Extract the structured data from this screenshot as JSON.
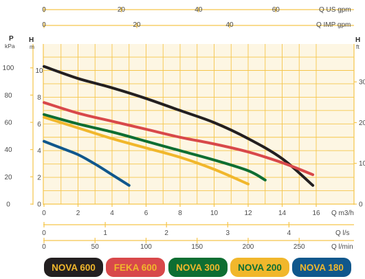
{
  "chart_data": {
    "type": "line",
    "axes": {
      "x_primary": {
        "label": "Q m3/h",
        "ticks": [
          "0",
          "2",
          "4",
          "6",
          "8",
          "10",
          "12",
          "14",
          "16"
        ],
        "range": [
          0,
          16.8
        ]
      },
      "y_left_m": {
        "label": "H",
        "unit": "m",
        "ticks": [
          "0",
          "2",
          "4",
          "6",
          "8",
          "10"
        ],
        "range": [
          0,
          11.8
        ]
      },
      "y_left_kpa": {
        "label": "P",
        "unit": "kPa",
        "ticks": [
          "0",
          "20",
          "40",
          "60",
          "80",
          "100"
        ]
      },
      "y_right_ft": {
        "label": "H",
        "unit": "ft",
        "ticks": [
          "0",
          "10",
          "20",
          "30"
        ]
      },
      "top_us": {
        "label": "Q US gpm",
        "ticks": [
          "0",
          "20",
          "40",
          "60"
        ]
      },
      "top_imp": {
        "label": "Q IMP gpm",
        "ticks": [
          "0",
          "20",
          "40"
        ]
      },
      "bottom_ls": {
        "label": "Q l/s",
        "ticks": [
          "0",
          "1",
          "2",
          "3",
          "4"
        ]
      },
      "bottom_lmin": {
        "label": "Q l/min",
        "ticks": [
          "0",
          "50",
          "100",
          "150",
          "200",
          "250"
        ]
      }
    },
    "series": [
      {
        "name": "NOVA 600",
        "color": "#231f20",
        "points": [
          [
            0,
            10.3
          ],
          [
            2,
            9.4
          ],
          [
            4,
            8.7
          ],
          [
            6,
            7.9
          ],
          [
            8,
            7.0
          ],
          [
            10,
            6.1
          ],
          [
            12,
            4.9
          ],
          [
            14,
            3.4
          ],
          [
            15.8,
            1.4
          ]
        ]
      },
      {
        "name": "FEKA 600",
        "color": "#d8484a",
        "points": [
          [
            0,
            7.6
          ],
          [
            2,
            6.8
          ],
          [
            4,
            6.2
          ],
          [
            6,
            5.6
          ],
          [
            8,
            5.0
          ],
          [
            10,
            4.5
          ],
          [
            12,
            3.9
          ],
          [
            14,
            3.1
          ],
          [
            15.8,
            2.2
          ]
        ]
      },
      {
        "name": "NOVA 300",
        "color": "#0e6e32",
        "points": [
          [
            0,
            6.7
          ],
          [
            2,
            6.0
          ],
          [
            4,
            5.4
          ],
          [
            6,
            4.7
          ],
          [
            8,
            4.0
          ],
          [
            10,
            3.3
          ],
          [
            12,
            2.5
          ],
          [
            13,
            1.8
          ]
        ]
      },
      {
        "name": "NOVA 200",
        "color": "#f1b72c",
        "points": [
          [
            0,
            6.5
          ],
          [
            2,
            5.7
          ],
          [
            4,
            4.9
          ],
          [
            6,
            4.2
          ],
          [
            8,
            3.5
          ],
          [
            10,
            2.6
          ],
          [
            12,
            1.5
          ]
        ]
      },
      {
        "name": "NOVA 180",
        "color": "#10578c",
        "points": [
          [
            0,
            4.7
          ],
          [
            1,
            4.2
          ],
          [
            2,
            3.7
          ],
          [
            3,
            3.0
          ],
          [
            4,
            2.2
          ],
          [
            5,
            1.4
          ]
        ]
      }
    ],
    "grid": true,
    "legend_position": "bottom"
  }
}
